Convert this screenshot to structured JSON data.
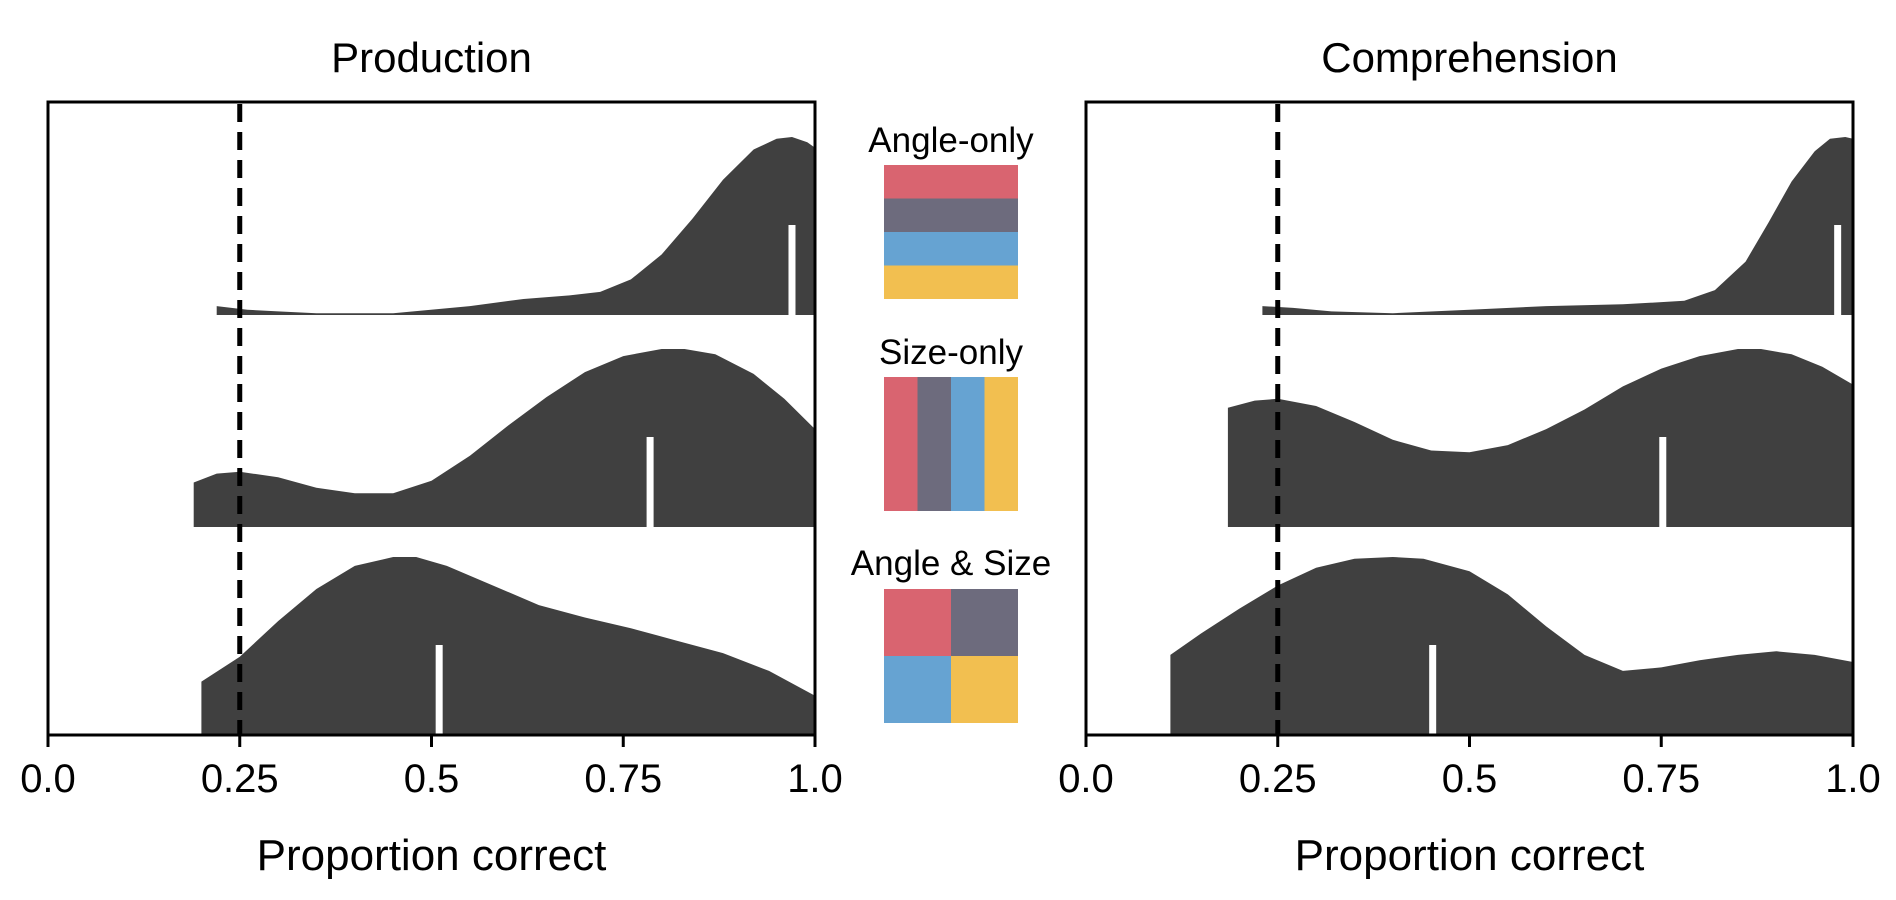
{
  "chart_data": [
    {
      "type": "violin",
      "title": "Production",
      "xlabel": "Proportion correct",
      "ylabel": "",
      "xlim": [
        0.0,
        1.0
      ],
      "xticks": [
        0.0,
        0.25,
        0.5,
        0.75,
        1.0
      ],
      "xtick_labels": [
        "0.0",
        "0.25",
        "0.5",
        "0.75",
        "1.0"
      ],
      "chance_line": 0.25,
      "fill_color": "#404040",
      "rows": [
        {
          "condition": "Angle-only",
          "range": [
            0.22,
            1.0
          ],
          "mean": 0.97,
          "density": [
            [
              0.22,
              0.05
            ],
            [
              0.26,
              0.03
            ],
            [
              0.3,
              0.02
            ],
            [
              0.35,
              0.01
            ],
            [
              0.45,
              0.01
            ],
            [
              0.55,
              0.05
            ],
            [
              0.62,
              0.09
            ],
            [
              0.68,
              0.11
            ],
            [
              0.72,
              0.13
            ],
            [
              0.76,
              0.2
            ],
            [
              0.8,
              0.34
            ],
            [
              0.84,
              0.54
            ],
            [
              0.88,
              0.76
            ],
            [
              0.92,
              0.93
            ],
            [
              0.95,
              0.99
            ],
            [
              0.97,
              1.0
            ],
            [
              0.99,
              0.97
            ],
            [
              1.0,
              0.94
            ]
          ]
        },
        {
          "condition": "Size-only",
          "range": [
            0.19,
            1.0
          ],
          "mean": 0.785,
          "density": [
            [
              0.19,
              0.25
            ],
            [
              0.22,
              0.3
            ],
            [
              0.25,
              0.31
            ],
            [
              0.3,
              0.28
            ],
            [
              0.35,
              0.22
            ],
            [
              0.4,
              0.19
            ],
            [
              0.45,
              0.19
            ],
            [
              0.5,
              0.26
            ],
            [
              0.55,
              0.4
            ],
            [
              0.6,
              0.57
            ],
            [
              0.65,
              0.73
            ],
            [
              0.7,
              0.87
            ],
            [
              0.75,
              0.96
            ],
            [
              0.8,
              1.0
            ],
            [
              0.83,
              1.0
            ],
            [
              0.87,
              0.97
            ],
            [
              0.92,
              0.86
            ],
            [
              0.96,
              0.72
            ],
            [
              1.0,
              0.55
            ]
          ]
        },
        {
          "condition": "Angle & Size",
          "range": [
            0.2,
            1.0
          ],
          "mean": 0.51,
          "density": [
            [
              0.2,
              0.3
            ],
            [
              0.25,
              0.44
            ],
            [
              0.3,
              0.64
            ],
            [
              0.35,
              0.82
            ],
            [
              0.4,
              0.95
            ],
            [
              0.45,
              1.0
            ],
            [
              0.48,
              1.0
            ],
            [
              0.52,
              0.95
            ],
            [
              0.58,
              0.84
            ],
            [
              0.64,
              0.73
            ],
            [
              0.7,
              0.66
            ],
            [
              0.76,
              0.6
            ],
            [
              0.82,
              0.53
            ],
            [
              0.88,
              0.46
            ],
            [
              0.94,
              0.36
            ],
            [
              1.0,
              0.22
            ]
          ]
        }
      ]
    },
    {
      "type": "violin",
      "title": "Comprehension",
      "xlabel": "Proportion correct",
      "ylabel": "",
      "xlim": [
        0.0,
        1.0
      ],
      "xticks": [
        0.0,
        0.25,
        0.5,
        0.75,
        1.0
      ],
      "xtick_labels": [
        "0.0",
        "0.25",
        "0.5",
        "0.75",
        "1.0"
      ],
      "chance_line": 0.25,
      "fill_color": "#404040",
      "rows": [
        {
          "condition": "Angle-only",
          "range": [
            0.23,
            1.0
          ],
          "mean": 0.98,
          "density": [
            [
              0.23,
              0.05
            ],
            [
              0.27,
              0.04
            ],
            [
              0.32,
              0.02
            ],
            [
              0.4,
              0.01
            ],
            [
              0.5,
              0.03
            ],
            [
              0.6,
              0.05
            ],
            [
              0.7,
              0.06
            ],
            [
              0.78,
              0.08
            ],
            [
              0.82,
              0.14
            ],
            [
              0.86,
              0.3
            ],
            [
              0.89,
              0.52
            ],
            [
              0.92,
              0.75
            ],
            [
              0.95,
              0.92
            ],
            [
              0.97,
              0.99
            ],
            [
              0.99,
              1.0
            ],
            [
              1.0,
              0.99
            ]
          ]
        },
        {
          "condition": "Size-only",
          "range": [
            0.185,
            1.0
          ],
          "mean": 0.752,
          "density": [
            [
              0.185,
              0.67
            ],
            [
              0.22,
              0.71
            ],
            [
              0.25,
              0.72
            ],
            [
              0.3,
              0.68
            ],
            [
              0.35,
              0.59
            ],
            [
              0.4,
              0.49
            ],
            [
              0.45,
              0.43
            ],
            [
              0.5,
              0.42
            ],
            [
              0.55,
              0.46
            ],
            [
              0.6,
              0.55
            ],
            [
              0.65,
              0.66
            ],
            [
              0.7,
              0.79
            ],
            [
              0.75,
              0.89
            ],
            [
              0.8,
              0.96
            ],
            [
              0.85,
              1.0
            ],
            [
              0.88,
              1.0
            ],
            [
              0.92,
              0.97
            ],
            [
              0.96,
              0.9
            ],
            [
              1.0,
              0.8
            ]
          ]
        },
        {
          "condition": "Angle & Size",
          "range": [
            0.11,
            1.0
          ],
          "mean": 0.452,
          "density": [
            [
              0.11,
              0.45
            ],
            [
              0.15,
              0.57
            ],
            [
              0.2,
              0.71
            ],
            [
              0.25,
              0.84
            ],
            [
              0.3,
              0.94
            ],
            [
              0.35,
              0.99
            ],
            [
              0.4,
              1.0
            ],
            [
              0.44,
              0.99
            ],
            [
              0.5,
              0.92
            ],
            [
              0.55,
              0.79
            ],
            [
              0.6,
              0.61
            ],
            [
              0.65,
              0.45
            ],
            [
              0.7,
              0.36
            ],
            [
              0.75,
              0.38
            ],
            [
              0.8,
              0.42
            ],
            [
              0.85,
              0.45
            ],
            [
              0.9,
              0.47
            ],
            [
              0.95,
              0.45
            ],
            [
              1.0,
              0.41
            ]
          ]
        }
      ]
    }
  ],
  "legend": {
    "groups": [
      {
        "label": "Angle-only",
        "layout": "horizontal-stripes"
      },
      {
        "label": "Size-only",
        "layout": "vertical-stripes"
      },
      {
        "label": "Angle & Size",
        "layout": "grid-2x2"
      }
    ],
    "colors": [
      "#D96470",
      "#6D6B7D",
      "#66A3D2",
      "#F2BF50"
    ]
  }
}
